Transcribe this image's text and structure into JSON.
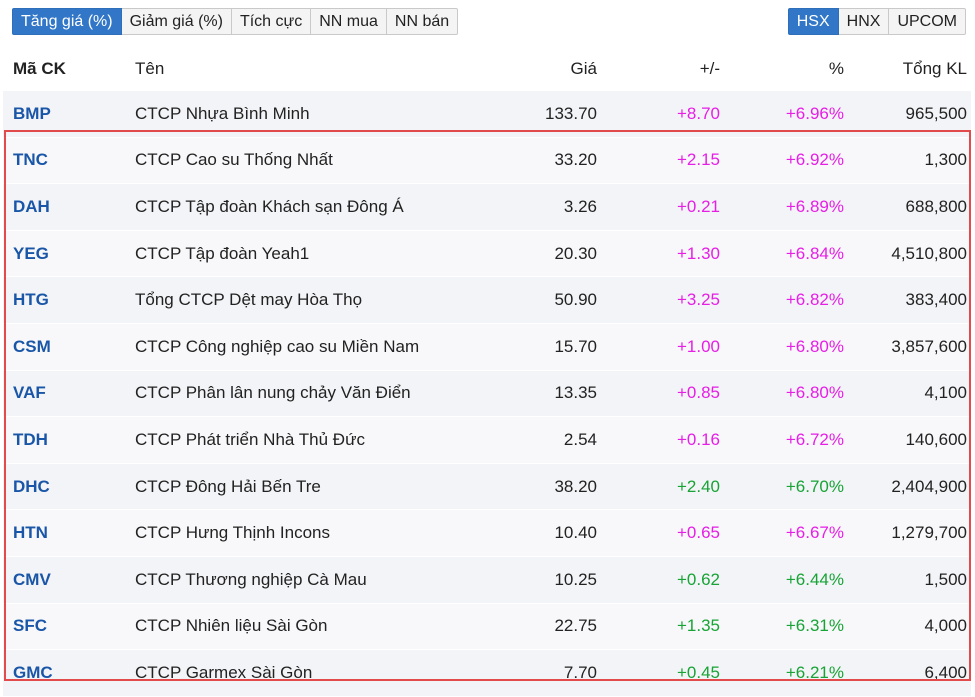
{
  "filter_tabs": [
    {
      "label": "Tăng giá (%)",
      "active": true
    },
    {
      "label": "Giảm giá (%)",
      "active": false
    },
    {
      "label": "Tích cực",
      "active": false
    },
    {
      "label": "NN mua",
      "active": false
    },
    {
      "label": "NN bán",
      "active": false
    }
  ],
  "exchange_tabs": [
    {
      "label": "HSX",
      "active": true
    },
    {
      "label": "HNX",
      "active": false
    },
    {
      "label": "UPCOM",
      "active": false
    }
  ],
  "table": {
    "headers": {
      "code": "Mã CK",
      "name": "Tên",
      "price": "Giá",
      "change": "+/-",
      "percent": "%",
      "volume": "Tổng KL"
    },
    "rows": [
      {
        "code": "BMP",
        "name": "CTCP Nhựa Bình Minh",
        "price": "133.70",
        "change": "+8.70",
        "percent": "+6.96%",
        "volume": "965,500",
        "color": "pink"
      },
      {
        "code": "TNC",
        "name": "CTCP Cao su Thống Nhất",
        "price": "33.20",
        "change": "+2.15",
        "percent": "+6.92%",
        "volume": "1,300",
        "color": "pink"
      },
      {
        "code": "DAH",
        "name": "CTCP Tập đoàn Khách sạn Đông Á",
        "price": "3.26",
        "change": "+0.21",
        "percent": "+6.89%",
        "volume": "688,800",
        "color": "pink"
      },
      {
        "code": "YEG",
        "name": "CTCP Tập đoàn Yeah1",
        "price": "20.30",
        "change": "+1.30",
        "percent": "+6.84%",
        "volume": "4,510,800",
        "color": "pink"
      },
      {
        "code": "HTG",
        "name": "Tổng CTCP Dệt may Hòa Thọ",
        "price": "50.90",
        "change": "+3.25",
        "percent": "+6.82%",
        "volume": "383,400",
        "color": "pink"
      },
      {
        "code": "CSM",
        "name": "CTCP Công nghiệp cao su Miền Nam",
        "price": "15.70",
        "change": "+1.00",
        "percent": "+6.80%",
        "volume": "3,857,600",
        "color": "pink"
      },
      {
        "code": "VAF",
        "name": "CTCP Phân lân nung chảy Văn Điển",
        "price": "13.35",
        "change": "+0.85",
        "percent": "+6.80%",
        "volume": "4,100",
        "color": "pink"
      },
      {
        "code": "TDH",
        "name": "CTCP Phát triển Nhà Thủ Đức",
        "price": "2.54",
        "change": "+0.16",
        "percent": "+6.72%",
        "volume": "140,600",
        "color": "pink"
      },
      {
        "code": "DHC",
        "name": "CTCP Đông Hải Bến Tre",
        "price": "38.20",
        "change": "+2.40",
        "percent": "+6.70%",
        "volume": "2,404,900",
        "color": "green"
      },
      {
        "code": "HTN",
        "name": "CTCP Hưng Thịnh Incons",
        "price": "10.40",
        "change": "+0.65",
        "percent": "+6.67%",
        "volume": "1,279,700",
        "color": "pink"
      },
      {
        "code": "CMV",
        "name": "CTCP Thương nghiệp Cà Mau",
        "price": "10.25",
        "change": "+0.62",
        "percent": "+6.44%",
        "volume": "1,500",
        "color": "green"
      },
      {
        "code": "SFC",
        "name": "CTCP Nhiên liệu Sài Gòn",
        "price": "22.75",
        "change": "+1.35",
        "percent": "+6.31%",
        "volume": "4,000",
        "color": "green"
      },
      {
        "code": "GMC",
        "name": "CTCP Garmex Sài Gòn",
        "price": "7.70",
        "change": "+0.45",
        "percent": "+6.21%",
        "volume": "6,400",
        "color": "green"
      }
    ]
  },
  "colors": {
    "active_tab": "#3277c7",
    "code_blue": "#1a56a8",
    "up_pink": "#e61ee6",
    "up_green": "#17a336",
    "highlight_border": "#e24b4b"
  }
}
